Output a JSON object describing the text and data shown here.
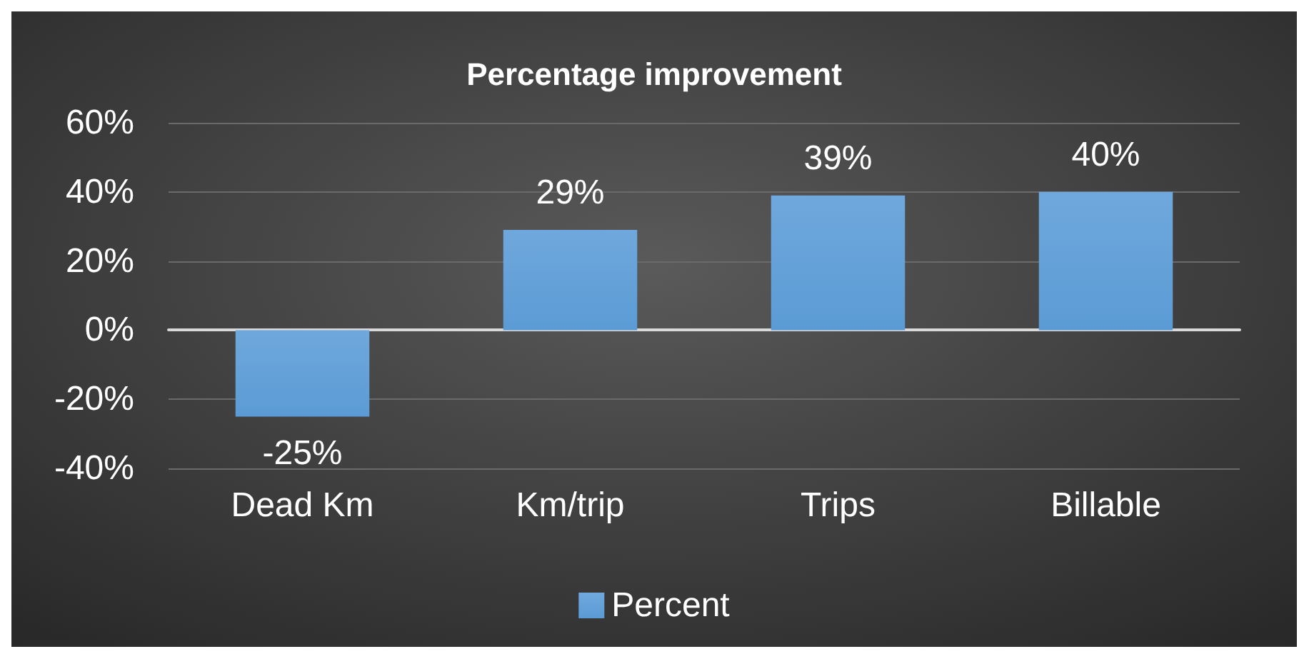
{
  "chart_data": {
    "type": "bar",
    "title": "Percentage improvement",
    "categories": [
      "Dead Km",
      "Km/trip",
      "Trips",
      "Billable"
    ],
    "series": [
      {
        "name": "Percent",
        "color": "#5b9bd5",
        "values": [
          -25,
          29,
          39,
          40
        ],
        "value_labels": [
          "-25%",
          "29%",
          "39%",
          "40%"
        ]
      }
    ],
    "ylim": [
      -40,
      60
    ],
    "yticks": [
      {
        "value": -40,
        "label": "-40%"
      },
      {
        "value": -20,
        "label": "-20%"
      },
      {
        "value": 0,
        "label": "0%"
      },
      {
        "value": 20,
        "label": "20%"
      },
      {
        "value": 40,
        "label": "40%"
      },
      {
        "value": 60,
        "label": "60%"
      }
    ],
    "grid": "y",
    "legend": "bottom"
  }
}
